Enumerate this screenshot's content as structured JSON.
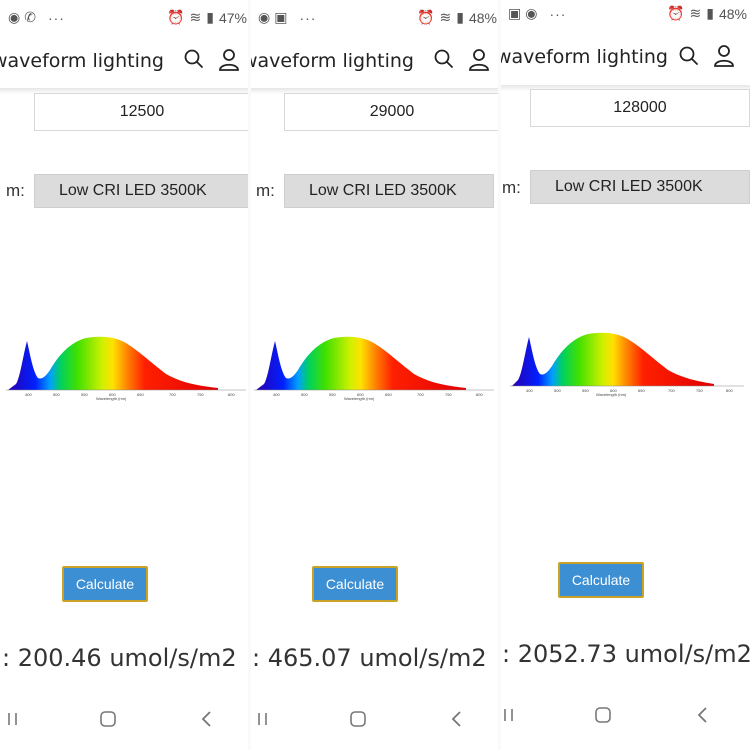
{
  "app": {
    "brand": "waveform lighting"
  },
  "form": {
    "type_label": "m:",
    "button_label": "Calculate"
  },
  "spectrum": {
    "tick_labels": [
      "400",
      "500",
      "550",
      "600",
      "650",
      "700",
      "750",
      "800"
    ],
    "axis_label": "Wavelength (nm)"
  },
  "panels": [
    {
      "battery": "47%",
      "lumens": "12500",
      "source": "Low CRI LED 3500K",
      "result": ": 200.46 umol/s/m2"
    },
    {
      "battery": "48%",
      "lumens": "29000",
      "source": "Low CRI LED 3500K",
      "result": ": 465.07 umol/s/m2"
    },
    {
      "battery": "48%",
      "lumens": "128000",
      "source": "Low CRI LED 3500K",
      "result": ": 2052.73 umol/s/m2"
    }
  ],
  "colors": {
    "button": "#3d8fd4",
    "button_border": "#c9a227",
    "select_bg": "#dcdcdc"
  },
  "icons": [
    "whatsapp-icon",
    "phone-icon",
    "gallery-icon",
    "alarm-icon",
    "wifi-icon",
    "signal-icon",
    "search-icon",
    "user-icon",
    "recent-apps-icon",
    "home-icon",
    "back-icon"
  ]
}
